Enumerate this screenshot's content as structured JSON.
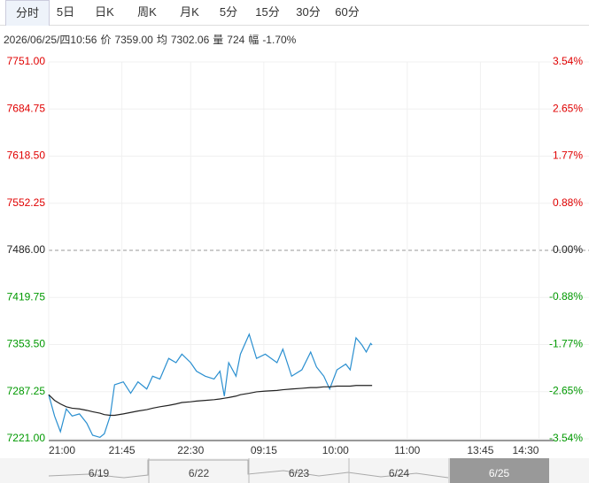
{
  "tabs": {
    "items": [
      "分时",
      "5日",
      "日K",
      "周K",
      "月K",
      "5分",
      "15分",
      "30分",
      "60分"
    ],
    "active": 0
  },
  "info": [
    "2026/06/25/四10:56",
    "价",
    "7359.00",
    "均",
    "7302.06",
    "量",
    "724",
    "幅",
    "-1.70%"
  ],
  "chart_data": {
    "type": "line",
    "x": [
      0,
      4,
      8,
      12,
      16,
      21,
      26,
      30,
      35,
      38,
      42,
      45,
      51,
      56,
      61,
      67,
      71,
      76,
      82,
      87,
      91,
      97,
      101,
      107,
      113,
      117,
      120,
      123,
      128,
      131,
      137,
      142,
      148,
      156,
      160,
      166,
      173,
      179,
      183,
      188,
      192,
      197,
      203,
      206,
      210,
      214,
      217,
      220,
      221
    ],
    "series": [
      {
        "name": "价",
        "color": "#2a8fd0",
        "values": [
          7283,
          7253,
          7231,
          7263,
          7253,
          7256,
          7243,
          7226,
          7223,
          7228,
          7253,
          7297,
          7301,
          7285,
          7301,
          7291,
          7309,
          7305,
          7334,
          7328,
          7340,
          7328,
          7316,
          7309,
          7305,
          7316,
          7281,
          7328,
          7309,
          7340,
          7368,
          7334,
          7340,
          7328,
          7347,
          7309,
          7318,
          7343,
          7322,
          7309,
          7291,
          7318,
          7326,
          7318,
          7363,
          7353,
          7343,
          7355,
          7353
        ]
      },
      {
        "name": "均",
        "color": "#222222",
        "values": [
          7283,
          7275,
          7270,
          7266,
          7264,
          7263,
          7261,
          7259,
          7257,
          7255,
          7254,
          7254,
          7256,
          7258,
          7260,
          7262,
          7264,
          7266,
          7268,
          7270,
          7272,
          7273,
          7274,
          7275,
          7276,
          7277,
          7278,
          7279,
          7281,
          7283,
          7285,
          7287,
          7288,
          7289,
          7290,
          7291,
          7292,
          7293,
          7293,
          7294,
          7294,
          7295,
          7295,
          7295,
          7296,
          7296,
          7296,
          7296,
          7296
        ]
      }
    ],
    "xlim": [
      0,
      345
    ],
    "xticks": [
      {
        "value": 0,
        "label": "21:00"
      },
      {
        "value": 50,
        "label": "21:45"
      },
      {
        "value": 97,
        "label": "22:30"
      },
      {
        "value": 147,
        "label": "09:15"
      },
      {
        "value": 196,
        "label": "10:00"
      },
      {
        "value": 245,
        "label": "11:00"
      },
      {
        "value": 295,
        "label": "13:45"
      },
      {
        "value": 335,
        "label": "14:30"
      }
    ],
    "ylim": [
      7221,
      7751
    ],
    "yticks": [
      {
        "value": 7751,
        "label": "7751.00"
      },
      {
        "value": 7684.75,
        "label": "7684.75"
      },
      {
        "value": 7618.5,
        "label": "7618.50"
      },
      {
        "value": 7552.25,
        "label": "7552.25"
      },
      {
        "value": 7486,
        "label": "7486.00"
      },
      {
        "value": 7419.75,
        "label": "7419.75"
      },
      {
        "value": 7353.5,
        "label": "7353.50"
      },
      {
        "value": 7287.25,
        "label": "7287.25"
      },
      {
        "value": 7221,
        "label": "7221.00"
      }
    ],
    "y2lim": [
      -3.54,
      3.54
    ],
    "y2ticks": [
      {
        "value": 3.54,
        "label": "3.54%"
      },
      {
        "value": 2.65,
        "label": "2.65%"
      },
      {
        "value": 1.77,
        "label": "1.77%"
      },
      {
        "value": 0.88,
        "label": "0.88%"
      },
      {
        "value": 0,
        "label": "0.00%"
      },
      {
        "value": -0.88,
        "label": "-0.88%"
      },
      {
        "value": -1.77,
        "label": "-1.77%"
      },
      {
        "value": -2.65,
        "label": "-2.65%"
      },
      {
        "value": -3.54,
        "label": "-3.54%"
      }
    ],
    "up_color": "#e00000",
    "down_color": "#009900"
  },
  "navigator": {
    "dates": [
      "6/19",
      "6/22",
      "6/23",
      "6/24",
      "6/25"
    ],
    "active": 4
  }
}
